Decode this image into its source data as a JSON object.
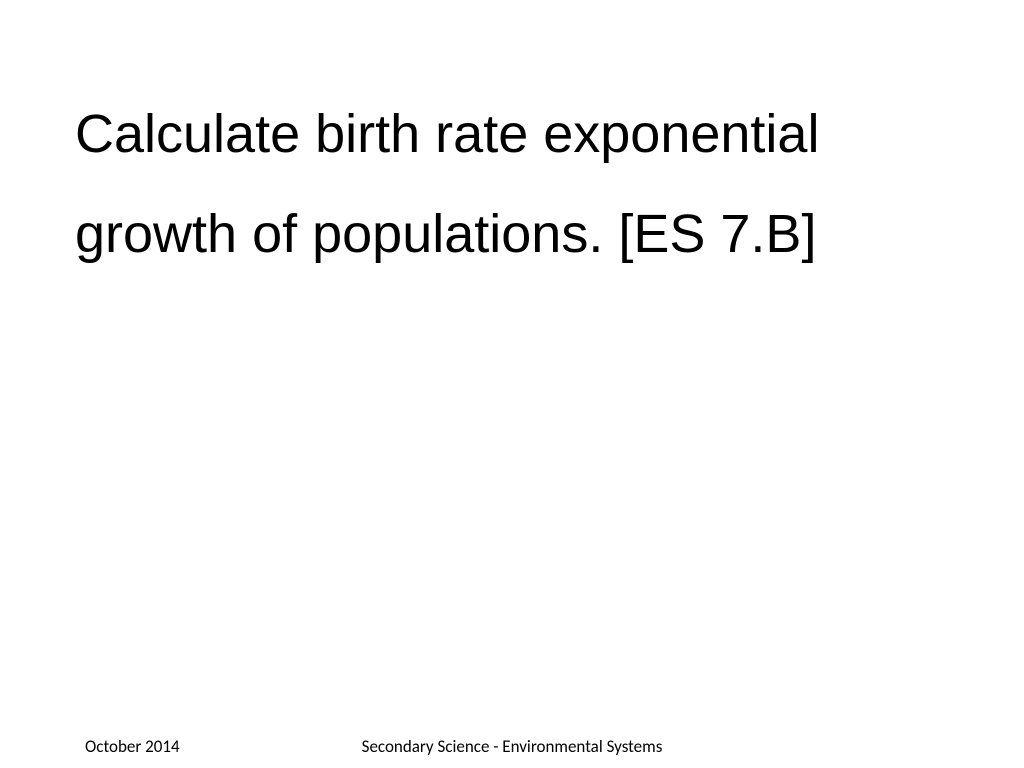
{
  "slide": {
    "main_text": "Calculate birth rate exponential growth of populations. [ES 7.B]",
    "main_text_color": "#000000",
    "main_text_fontsize": 54,
    "background_color": "#ffffff"
  },
  "footer": {
    "date": "October 2014",
    "title": "Secondary Science - Environmental Systems",
    "fontsize": 17,
    "color": "#000000"
  }
}
